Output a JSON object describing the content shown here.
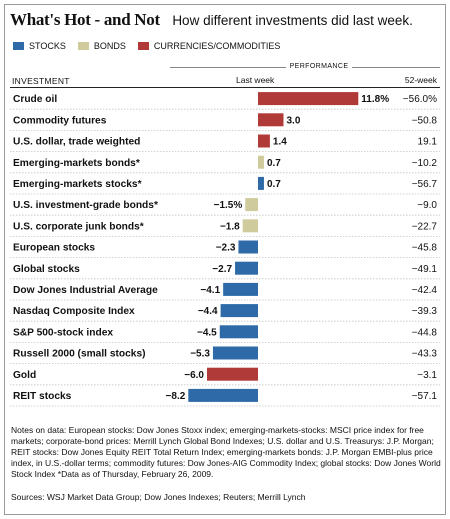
{
  "header": {
    "title": "What's Hot - and Not",
    "subtitle": "How different investments did last week."
  },
  "legend": [
    {
      "label": "STOCKS",
      "color": "#2e6aa8"
    },
    {
      "label": "BONDS",
      "color": "#cfcb9c"
    },
    {
      "label": "CURRENCIES/COMMODITIES",
      "color": "#b03a37"
    }
  ],
  "columns": {
    "performance": "PERFORMANCE",
    "investment": "INVESTMENT",
    "last_week": "Last week",
    "week52": "52-week"
  },
  "chart_data": {
    "type": "bar",
    "orientation": "horizontal",
    "categories": [
      "Crude oil",
      "Commodity futures",
      "U.S. dollar, trade weighted",
      "Emerging-markets bonds*",
      "Emerging-markets stocks*",
      "U.S. investment-grade bonds*",
      "U.S. corporate junk bonds*",
      "European stocks",
      "Global stocks",
      "Dow Jones Industrial Average",
      "Nasdaq Composite Index",
      "S&P 500-stock index",
      "Russell 2000 (small stocks)",
      "Gold",
      "REIT stocks"
    ],
    "values": [
      11.8,
      3.0,
      1.4,
      0.7,
      0.7,
      -1.5,
      -1.8,
      -2.3,
      -2.7,
      -4.1,
      -4.4,
      -4.5,
      -5.3,
      -6.0,
      -8.2
    ],
    "value_labels": [
      "11.8%",
      "3.0",
      "1.4",
      "0.7",
      "0.7",
      "−1.5%",
      "−1.8",
      "−2.3",
      "−2.7",
      "−4.1",
      "−4.4",
      "−4.5",
      "−5.3",
      "−6.0",
      "−8.2"
    ],
    "week52_labels": [
      "−56.0%",
      "−50.8",
      "19.1",
      "−10.2",
      "−56.7",
      "−9.0",
      "−22.7",
      "−45.8",
      "−49.1",
      "−42.4",
      "−39.3",
      "−44.8",
      "−43.3",
      "−3.1",
      "−57.1"
    ],
    "groups": [
      "commodity",
      "commodity",
      "commodity",
      "bond",
      "stock",
      "bond",
      "bond",
      "stock",
      "stock",
      "stock",
      "stock",
      "stock",
      "stock",
      "commodity",
      "stock"
    ],
    "group_colors": {
      "stock": "#2e6aa8",
      "bond": "#cfcb9c",
      "commodity": "#b03a37"
    },
    "xlim": [
      -8.2,
      11.8
    ],
    "grid": false,
    "legend_position": "top-left"
  },
  "notes": "Notes on data: European stocks: Dow Jones Stoxx index; emerging-markets-stocks: MSCI price index for free markets; corporate-bond prices: Merrill Lynch Global Bond Indexes; U.S. dollar and U.S. Treasurys: J.P. Morgan; REIT stocks: Dow Jones Equity REIT Total Return Index; emerging-markets bonds: J.P. Morgan EMBI-plus price index, in U.S.-dollar terms; commodity futures: Dow Jones-AIG Commodity Index; global stocks: Dow Jones World Stock Index  *Data as of Thursday, February 26, 2009.",
  "sources": "Sources: WSJ Market Data Group; Dow Jones Indexes; Reuters; Merrill Lynch"
}
